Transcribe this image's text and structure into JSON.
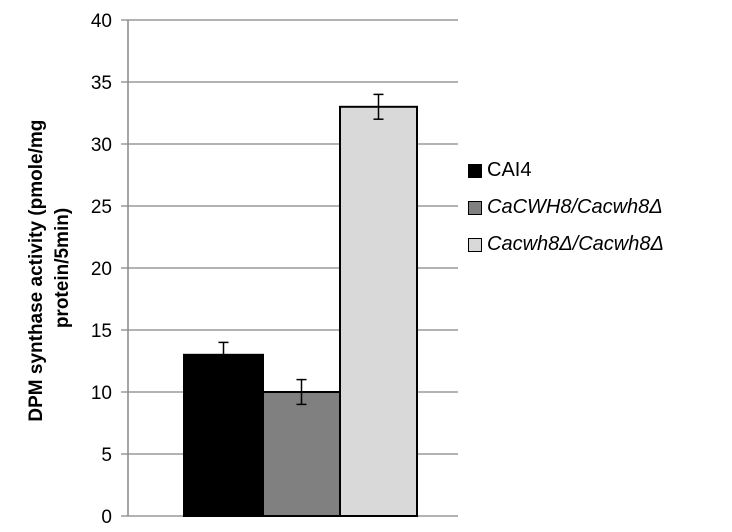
{
  "chart_data": {
    "type": "bar",
    "title": "",
    "xlabel": "",
    "ylabel": "DPM synthase activity (pmole/mg protein/5min)",
    "ylabel_lines": [
      "DPM synthase activity (pmole/mg",
      "protein/5min)"
    ],
    "ylim": [
      0,
      40
    ],
    "yticks": [
      "0",
      "5",
      "10",
      "15",
      "20",
      "25",
      "30",
      "35",
      "40"
    ],
    "grid": true,
    "legend_position": "right",
    "categories": [
      ""
    ],
    "series": [
      {
        "name": "CAI4",
        "values": [
          13
        ],
        "error": [
          1
        ],
        "color": "#000000",
        "italic": false
      },
      {
        "name": "CaCWH8/Cacwh8Δ",
        "values": [
          10
        ],
        "error": [
          1
        ],
        "color": "#808080",
        "italic": true
      },
      {
        "name": "Cacwh8Δ/Cacwh8Δ",
        "values": [
          33
        ],
        "error": [
          1
        ],
        "color": "#d9d9d9",
        "italic": true
      }
    ]
  }
}
